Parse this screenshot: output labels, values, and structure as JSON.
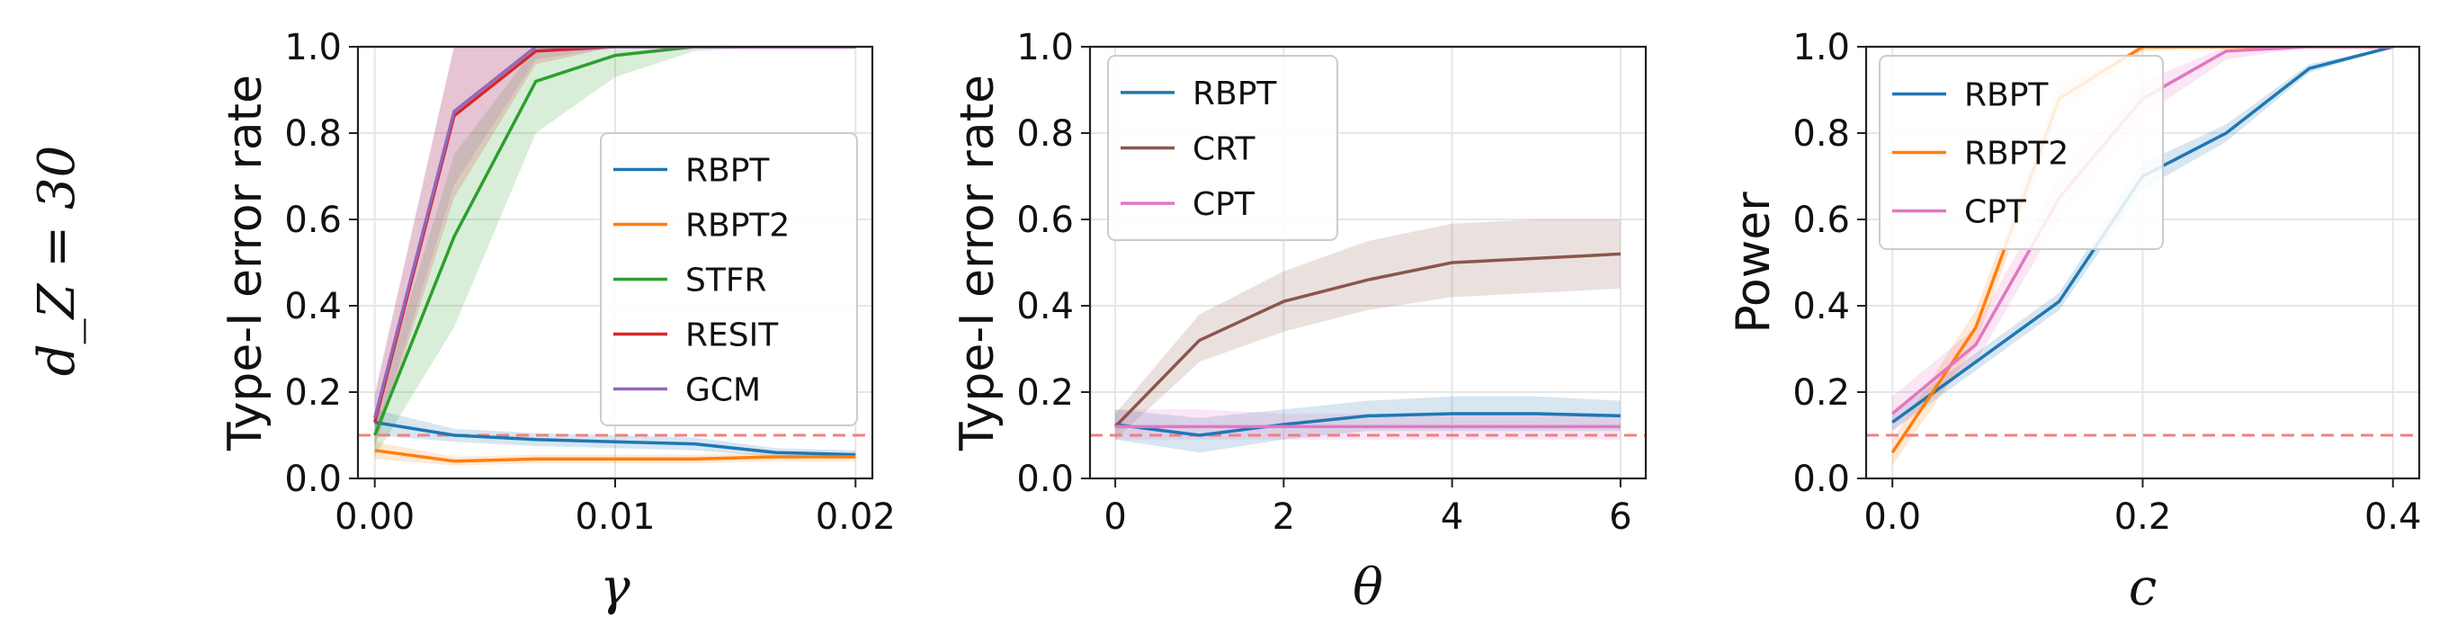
{
  "row_label": "d_Z = 30",
  "reference_line": {
    "y": 0.1,
    "color": "#f08080"
  },
  "chart_data": [
    {
      "type": "line",
      "xlabel": "γ",
      "ylabel": "Type-I error rate",
      "xlim": [
        -0.0007,
        0.0207
      ],
      "ylim": [
        0,
        1
      ],
      "xticks": [
        0,
        0.01,
        0.02
      ],
      "xtick_labels": [
        "0.00",
        "0.01",
        "0.02"
      ],
      "yticks": [
        0,
        0.2,
        0.4,
        0.6,
        0.8,
        1.0
      ],
      "ytick_labels": [
        "0.0",
        "0.2",
        "0.4",
        "0.6",
        "0.8",
        "1.0"
      ],
      "grid": true,
      "legend": "center-right",
      "series": [
        {
          "name": "RBPT",
          "color": "#1f77b4",
          "x": [
            0,
            0.0033,
            0.0067,
            0.01,
            0.0133,
            0.0167,
            0.02
          ],
          "y": [
            0.13,
            0.1,
            0.09,
            0.085,
            0.08,
            0.06,
            0.055
          ],
          "lo": [
            0.1,
            0.085,
            0.075,
            0.07,
            0.065,
            0.05,
            0.045
          ],
          "hi": [
            0.16,
            0.115,
            0.105,
            0.1,
            0.095,
            0.07,
            0.065
          ]
        },
        {
          "name": "RBPT2",
          "color": "#ff7f0e",
          "x": [
            0,
            0.0033,
            0.0067,
            0.01,
            0.0133,
            0.0167,
            0.02
          ],
          "y": [
            0.065,
            0.04,
            0.045,
            0.045,
            0.045,
            0.05,
            0.05
          ],
          "lo": [
            0.045,
            0.03,
            0.035,
            0.035,
            0.035,
            0.04,
            0.04
          ],
          "hi": [
            0.085,
            0.05,
            0.055,
            0.055,
            0.055,
            0.06,
            0.06
          ]
        },
        {
          "name": "STFR",
          "color": "#2ca02c",
          "x": [
            0,
            0.0033,
            0.0067,
            0.01,
            0.0133,
            0.0167,
            0.02
          ],
          "y": [
            0.1,
            0.56,
            0.92,
            0.98,
            1.0,
            1.0,
            1.0
          ],
          "lo": [
            0.05,
            0.35,
            0.8,
            0.93,
            0.99,
            1.0,
            1.0
          ],
          "hi": [
            0.15,
            0.75,
            1.0,
            1.0,
            1.0,
            1.0,
            1.0
          ]
        },
        {
          "name": "RESIT",
          "color": "#d62728",
          "x": [
            0,
            0.0033,
            0.0067,
            0.01,
            0.0133,
            0.0167,
            0.02
          ],
          "y": [
            0.13,
            0.84,
            0.99,
            1.0,
            1.0,
            1.0,
            1.0
          ],
          "lo": [
            0.07,
            0.65,
            0.96,
            1.0,
            1.0,
            1.0,
            1.0
          ],
          "hi": [
            0.19,
            1.0,
            1.0,
            1.0,
            1.0,
            1.0,
            1.0
          ]
        },
        {
          "name": "GCM",
          "color": "#9467bd",
          "x": [
            0,
            0.0033,
            0.0067,
            0.01,
            0.0133,
            0.0167,
            0.02
          ],
          "y": [
            0.14,
            0.85,
            1.0,
            1.0,
            1.0,
            1.0,
            1.0
          ],
          "lo": [
            0.08,
            0.68,
            0.97,
            1.0,
            1.0,
            1.0,
            1.0
          ],
          "hi": [
            0.2,
            1.0,
            1.0,
            1.0,
            1.0,
            1.0,
            1.0
          ]
        }
      ]
    },
    {
      "type": "line",
      "xlabel": "θ",
      "ylabel": "Type-I error rate",
      "xlim": [
        -0.3,
        6.3
      ],
      "ylim": [
        0,
        1
      ],
      "xticks": [
        0,
        2,
        4,
        6
      ],
      "xtick_labels": [
        "0",
        "2",
        "4",
        "6"
      ],
      "yticks": [
        0,
        0.2,
        0.4,
        0.6,
        0.8,
        1.0
      ],
      "ytick_labels": [
        "0.0",
        "0.2",
        "0.4",
        "0.6",
        "0.8",
        "1.0"
      ],
      "grid": true,
      "legend": "top-left",
      "series": [
        {
          "name": "RBPT",
          "color": "#1f77b4",
          "x": [
            0,
            1,
            2,
            3,
            4,
            5,
            6
          ],
          "y": [
            0.125,
            0.1,
            0.125,
            0.145,
            0.15,
            0.15,
            0.145
          ],
          "lo": [
            0.09,
            0.06,
            0.09,
            0.11,
            0.11,
            0.11,
            0.11
          ],
          "hi": [
            0.16,
            0.14,
            0.16,
            0.18,
            0.19,
            0.19,
            0.18
          ]
        },
        {
          "name": "CRT",
          "color": "#8c564b",
          "x": [
            0,
            1,
            2,
            3,
            4,
            5,
            6
          ],
          "y": [
            0.12,
            0.32,
            0.41,
            0.46,
            0.5,
            0.51,
            0.52
          ],
          "lo": [
            0.09,
            0.27,
            0.34,
            0.39,
            0.42,
            0.43,
            0.44
          ],
          "hi": [
            0.15,
            0.38,
            0.48,
            0.55,
            0.59,
            0.6,
            0.6
          ]
        },
        {
          "name": "CPT",
          "color": "#e377c2",
          "x": [
            0,
            1,
            2,
            3,
            4,
            5,
            6
          ],
          "y": [
            0.12,
            0.12,
            0.12,
            0.12,
            0.12,
            0.12,
            0.12
          ],
          "lo": [
            0.09,
            0.09,
            0.09,
            0.09,
            0.09,
            0.09,
            0.09
          ],
          "hi": [
            0.16,
            0.16,
            0.15,
            0.15,
            0.15,
            0.15,
            0.15
          ]
        }
      ]
    },
    {
      "type": "line",
      "xlabel": "c",
      "ylabel": "Power",
      "xlim": [
        -0.021,
        0.421
      ],
      "ylim": [
        0,
        1
      ],
      "xticks": [
        0,
        0.2,
        0.4
      ],
      "xtick_labels": [
        "0.0",
        "0.2",
        "0.4"
      ],
      "yticks": [
        0,
        0.2,
        0.4,
        0.6,
        0.8,
        1.0
      ],
      "ytick_labels": [
        "0.0",
        "0.2",
        "0.4",
        "0.6",
        "0.8",
        "1.0"
      ],
      "grid": true,
      "legend": "top-left",
      "series": [
        {
          "name": "RBPT",
          "color": "#1f77b4",
          "x": [
            0,
            0.0667,
            0.1333,
            0.2,
            0.2667,
            0.3333,
            0.4
          ],
          "y": [
            0.13,
            0.27,
            0.41,
            0.7,
            0.8,
            0.95,
            1.0
          ],
          "lo": [
            0.11,
            0.25,
            0.39,
            0.67,
            0.78,
            0.94,
            1.0
          ],
          "hi": [
            0.15,
            0.29,
            0.43,
            0.73,
            0.82,
            0.96,
            1.0
          ]
        },
        {
          "name": "RBPT2",
          "color": "#ff7f0e",
          "x": [
            0,
            0.0667,
            0.1333,
            0.2,
            0.2667,
            0.3333,
            0.4
          ],
          "y": [
            0.06,
            0.35,
            0.88,
            1.0,
            1.0,
            1.0,
            1.0
          ],
          "lo": [
            0.03,
            0.31,
            0.85,
            0.99,
            1.0,
            1.0,
            1.0
          ],
          "hi": [
            0.09,
            0.39,
            0.91,
            1.0,
            1.0,
            1.0,
            1.0
          ]
        },
        {
          "name": "CPT",
          "color": "#e377c2",
          "x": [
            0,
            0.0667,
            0.1333,
            0.2,
            0.2667,
            0.3333,
            0.4
          ],
          "y": [
            0.15,
            0.31,
            0.65,
            0.88,
            0.99,
            1.0,
            1.0
          ],
          "lo": [
            0.11,
            0.27,
            0.6,
            0.84,
            0.97,
            1.0,
            1.0
          ],
          "hi": [
            0.19,
            0.35,
            0.7,
            0.92,
            1.0,
            1.0,
            1.0
          ]
        }
      ]
    }
  ]
}
